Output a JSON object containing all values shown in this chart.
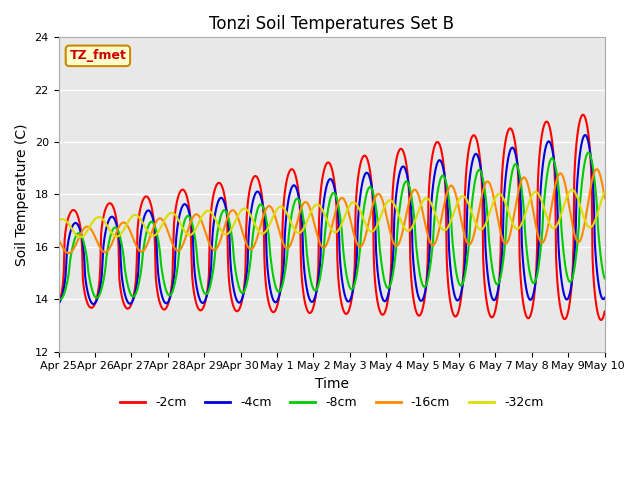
{
  "title": "Tonzi Soil Temperatures Set B",
  "xlabel": "Time",
  "ylabel": "Soil Temperature (C)",
  "ylim": [
    12,
    24
  ],
  "yticks": [
    12,
    14,
    16,
    18,
    20,
    22,
    24
  ],
  "annotation_text": "TZ_fmet",
  "annotation_bg": "#ffffcc",
  "annotation_border": "#cc8800",
  "line_colors": {
    "-2cm": "#ff0000",
    "-4cm": "#0000dd",
    "-8cm": "#00cc00",
    "-16cm": "#ff8800",
    "-32cm": "#dddd00"
  },
  "line_width": 1.5,
  "bg_color": "#e8e8e8",
  "grid_color": "#ffffff",
  "tick_labels": [
    "Apr 25",
    "Apr 26",
    "Apr 27",
    "Apr 28",
    "Apr 29",
    "Apr 30",
    "May 1",
    "May 2",
    "May 3",
    "May 4",
    "May 5",
    "May 6",
    "May 7",
    "May 8",
    "May 9",
    "May 10"
  ]
}
